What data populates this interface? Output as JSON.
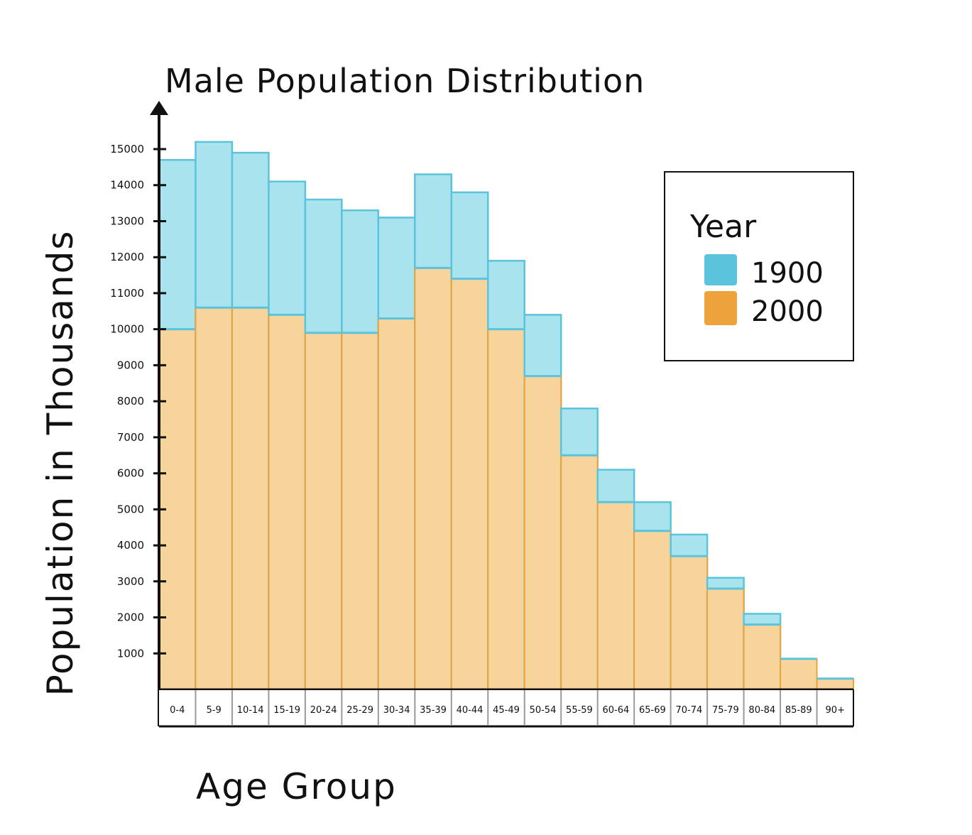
{
  "chart_data": {
    "type": "bar",
    "title": "Male Population Distribution",
    "xlabel": "Age Group",
    "ylabel": "Population in Thousands",
    "categories": [
      "0-4",
      "5-9",
      "10-14",
      "15-19",
      "20-24",
      "25-29",
      "30-34",
      "35-39",
      "40-44",
      "45-49",
      "50-54",
      "55-59",
      "60-64",
      "65-69",
      "70-74",
      "75-79",
      "80-84",
      "85-89",
      "90+"
    ],
    "series": [
      {
        "name": "1900",
        "color": "#5bc3dc",
        "fill": "#a9e4ee",
        "values": [
          14700,
          15200,
          14900,
          14100,
          13600,
          13300,
          13100,
          14300,
          13800,
          11900,
          10400,
          7800,
          6100,
          5200,
          4300,
          3100,
          2100,
          0,
          0
        ]
      },
      {
        "name": "2000",
        "color": "#eea23c",
        "fill": "#f6d49c",
        "values": [
          10000,
          10600,
          10600,
          10400,
          9900,
          9900,
          10300,
          11700,
          11400,
          10000,
          8700,
          6500,
          5200,
          4400,
          3700,
          2800,
          1800,
          850,
          300
        ]
      }
    ],
    "yticks": [
      1000,
      2000,
      3000,
      4000,
      5000,
      6000,
      7000,
      8000,
      9000,
      10000,
      11000,
      12000,
      13000,
      14000,
      15000
    ],
    "ylim": [
      0,
      16000
    ],
    "legend": {
      "title": "Year",
      "placement": "top-right"
    },
    "grid": false
  }
}
